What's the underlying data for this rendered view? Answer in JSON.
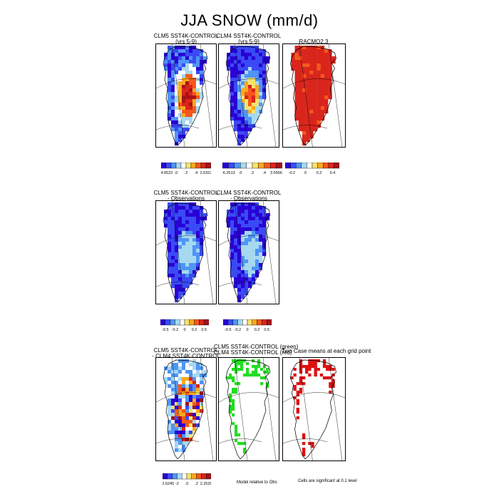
{
  "title": "JJA SNOW (mm/d)",
  "palettes": {
    "diverging": [
      "#2a00d6",
      "#3a4af4",
      "#4f95f5",
      "#a6d8f0",
      "#ffffff",
      "#f7e36a",
      "#f9a81f",
      "#f5581c",
      "#d9251c",
      "#a8121a"
    ],
    "obs_diff": [
      "#2a00d6",
      "#3a4af4",
      "#4f95f5",
      "#a6d8f0",
      "#ffffff",
      "#f7e36a",
      "#f9a81f",
      "#f5581c",
      "#d9251c",
      "#a8121a"
    ]
  },
  "chart_data": [
    {
      "type": "heatmap",
      "panel": "clm5-change",
      "title": "CLM5 SST4K-CONTROL",
      "subtitle": "(yrs 5-9)",
      "colorbar_labels": [
        "-4.6522",
        ".0",
        ".2",
        ".4",
        "2.6322"
      ],
      "colorbar_range": [
        -4.6522,
        2.6322
      ],
      "pattern": "margin-negative-interior-positive"
    },
    {
      "type": "heatmap",
      "panel": "clm4-change",
      "title": "CLM4 SST4K-CONTROL",
      "subtitle": "(yrs 5-9)",
      "colorbar_labels": [
        "-6.2513",
        ".0",
        ".2",
        ".4",
        "3.5556"
      ],
      "colorbar_range": [
        -6.2513,
        3.5556
      ],
      "pattern": "mostly-negative-center-positive"
    },
    {
      "type": "heatmap",
      "panel": "racmo",
      "title": "RACMO2.3",
      "subtitle": "",
      "colorbar_labels": [
        "-0.2",
        "0",
        "0.2",
        "0.4"
      ],
      "colorbar_range": [
        -0.3,
        0.5
      ],
      "pattern": "mostly-positive"
    },
    {
      "type": "heatmap",
      "panel": "clm5-minus-obs",
      "title": "CLM5 SST4K-CONTROL",
      "subtitle": "- Observations",
      "colorbar_labels": [
        "-0.5",
        "-0.2",
        "0",
        "0.2",
        "0.5"
      ],
      "colorbar_range": [
        -0.6,
        0.6
      ],
      "pattern": "negative-with-light-center"
    },
    {
      "type": "heatmap",
      "panel": "clm4-minus-obs",
      "title": "CLM4 SST4K-CONTROL",
      "subtitle": "- Observations",
      "colorbar_labels": [
        "-0.5",
        "-0.2",
        "0",
        "0.2",
        "0.5"
      ],
      "colorbar_range": [
        -0.6,
        0.6
      ],
      "pattern": "negative-with-light-center"
    },
    {
      "type": "heatmap",
      "panel": "clm5-minus-clm4",
      "title": "CLM5 SST4K-CONTROL",
      "subtitle": "- CLM4 SST4K-CONTROL",
      "colorbar_labels": [
        "-2.6245",
        "-2",
        ".0",
        ".2",
        "2.2526"
      ],
      "colorbar_range": [
        -2.6245,
        2.2526
      ],
      "pattern": "mixed"
    },
    {
      "type": "heatmap",
      "panel": "significance-green-red",
      "title": "CLM5 SST4K-CONTROL (green)",
      "subtitle": "CLM4 SST4K-CONTROL (red)",
      "pattern": "significance-scattered"
    },
    {
      "type": "heatmap",
      "panel": "significance-diff",
      "title": "Two Case means at each grid point",
      "subtitle": "",
      "pattern": "significance-scattered"
    }
  ],
  "footnotes": {
    "model_relative": "Model relative to Obs",
    "significance": "Cells are significant at 0.1 level"
  }
}
